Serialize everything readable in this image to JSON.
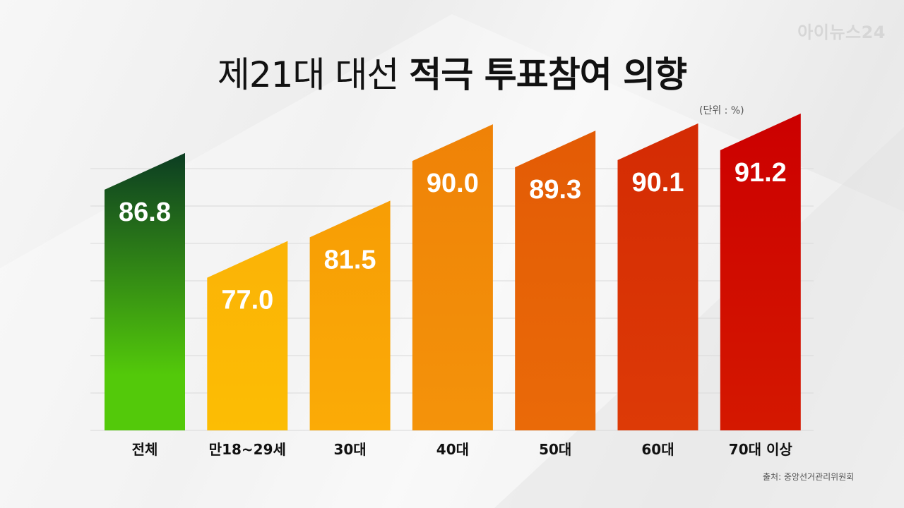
{
  "brand": {
    "logo_text": "아이뉴스24"
  },
  "title": {
    "prefix": "제21대 대선",
    "emphasis": "적극 투표참여 의향"
  },
  "unit_note": "(단위 : %)",
  "source": "출처: 중앙선거관리위원회",
  "colors": {
    "title": "#111111",
    "label": "#111111",
    "value_text": "#ffffff",
    "gridline": "#d9d9d9",
    "bars": [
      [
        "#53c90a",
        "#0c3d22"
      ],
      [
        "#fcbd04",
        "#fbb306"
      ],
      [
        "#fbab06",
        "#f79d05"
      ],
      [
        "#f4930a",
        "#ef8207"
      ],
      [
        "#ea6a08",
        "#e35b05"
      ],
      [
        "#dd3a06",
        "#d42b04"
      ],
      [
        "#d41800",
        "#cc0000"
      ]
    ]
  },
  "chart_data": {
    "type": "bar",
    "title": "제21대 대선 적극 투표참여 의향",
    "unit": "%",
    "categories": [
      "전체",
      "만18~29세",
      "30대",
      "40대",
      "50대",
      "60대",
      "70대 이상"
    ],
    "values": [
      86.8,
      77.0,
      81.5,
      90.0,
      89.3,
      90.1,
      91.2
    ],
    "value_labels": [
      "86.8",
      "77.0",
      "81.5",
      "90.0",
      "89.3",
      "90.1",
      "91.2"
    ],
    "ylim": [
      60,
      93
    ],
    "grid": true,
    "legend": "none"
  }
}
